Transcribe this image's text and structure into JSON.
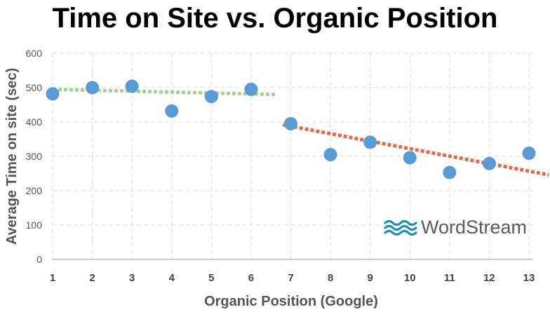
{
  "chart_data": {
    "type": "scatter",
    "title": "Time on Site vs. Organic Position",
    "xlabel": "Organic Position (Google)",
    "ylabel": "Average Time on site (sec)",
    "x": [
      1,
      2,
      3,
      4,
      5,
      6,
      7,
      8,
      9,
      10,
      11,
      12,
      13
    ],
    "y": [
      482,
      500,
      504,
      432,
      474,
      495,
      395,
      305,
      341,
      296,
      253,
      279,
      309
    ],
    "xlim": [
      1,
      13
    ],
    "ylim": [
      0,
      600
    ],
    "yticks": [
      0,
      100,
      200,
      300,
      400,
      500,
      600
    ],
    "xticks": [
      "1",
      "2",
      "3",
      "4",
      "5",
      "6",
      "7",
      "8",
      "9",
      "10",
      "11",
      "12",
      "13"
    ],
    "grid": true,
    "point_color": "#5b9bd5",
    "trendlines": [
      {
        "color": "#a9d18e",
        "x": [
          1,
          6.6
        ],
        "y": [
          495,
          480
        ]
      },
      {
        "color": "#e06a4a",
        "x": [
          6.8,
          13.5
        ],
        "y": [
          392,
          246
        ]
      }
    ]
  },
  "logo": {
    "text": "WordStream",
    "color": "#1f8fb2"
  }
}
